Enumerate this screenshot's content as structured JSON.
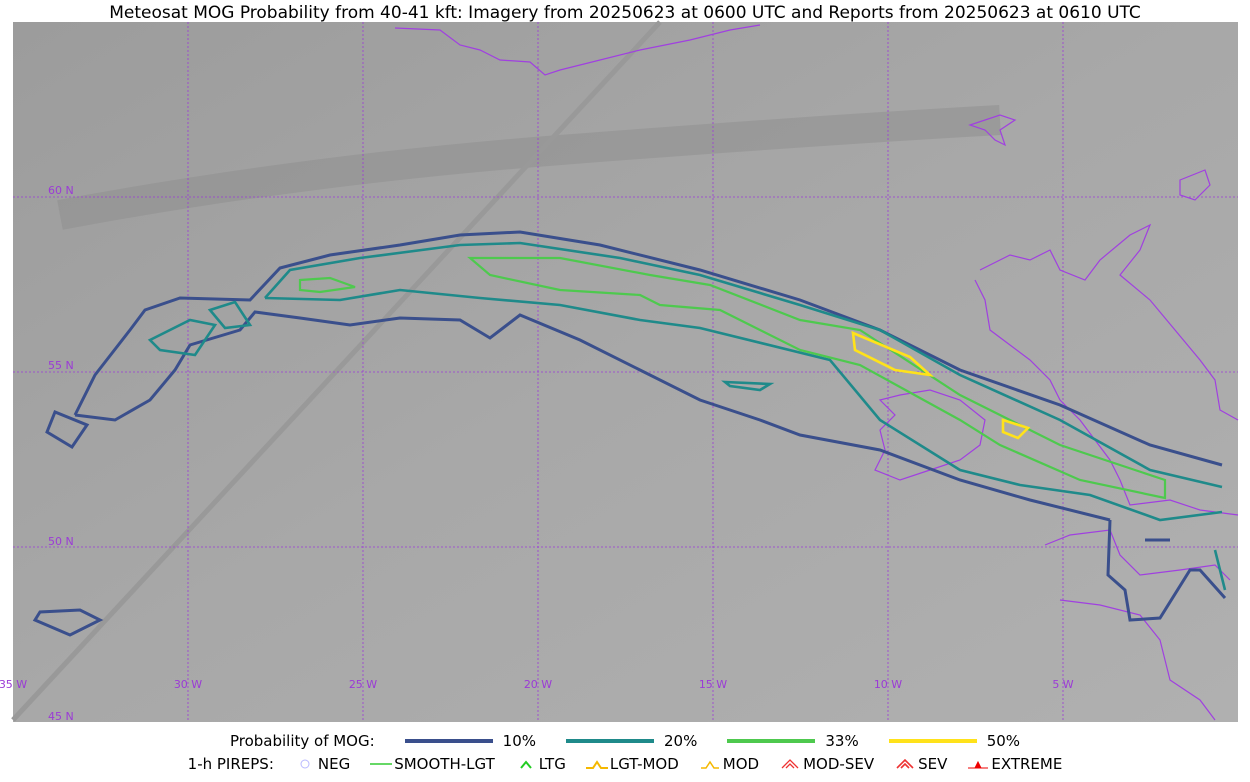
{
  "title": "Meteosat MOG Probability from 40-41 kft: Imagery from 20250623 at 0600 UTC and Reports from 20250623 at 0610 UTC",
  "map": {
    "latitude_labels": [
      "60 N",
      "55 N",
      "50 N",
      "45 N"
    ],
    "longitude_labels": [
      "35 W",
      "30 W",
      "25 W",
      "20 W",
      "15 W",
      "10 W",
      "5 W"
    ]
  },
  "legend": {
    "probability_title": "Probability of MOG:",
    "probability_levels": [
      "10%",
      "20%",
      "33%",
      "50%"
    ],
    "pireps_title": "1-h PIREPS:",
    "pireps": [
      "NEG",
      "SMOOTH-LGT",
      "LTG",
      "LGT-MOD",
      "MOD",
      "MOD-SEV",
      "SEV",
      "EXTREME"
    ]
  }
}
